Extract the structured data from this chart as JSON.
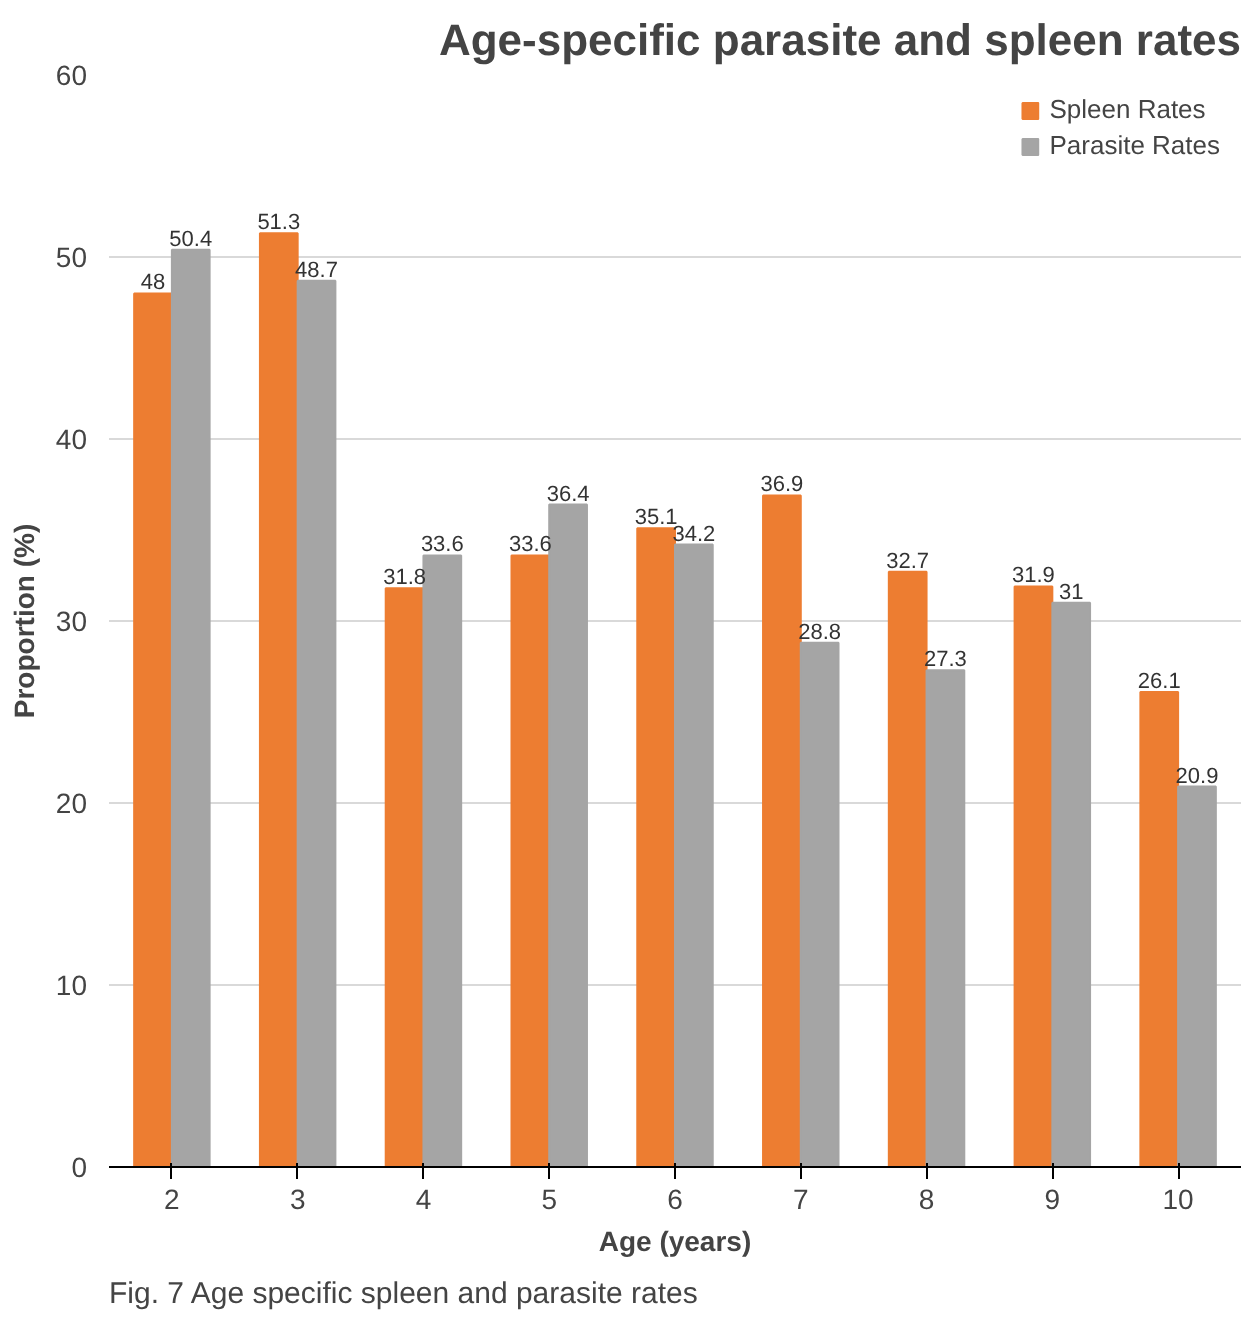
{
  "chart_data": {
    "type": "bar",
    "title": "Age-specific parasite and spleen rates",
    "xlabel": "Age (years)",
    "ylabel": "Proportion (%)",
    "categories": [
      "2",
      "3",
      "4",
      "5",
      "6",
      "7",
      "8",
      "9",
      "10"
    ],
    "series": [
      {
        "name": "Spleen Rates",
        "color": "#ed7d31",
        "values": [
          48,
          51.3,
          31.8,
          33.6,
          35.1,
          36.9,
          32.7,
          31.9,
          26.1
        ]
      },
      {
        "name": "Parasite Rates",
        "color": "#a5a5a5",
        "values": [
          50.4,
          48.7,
          33.6,
          36.4,
          34.2,
          28.8,
          27.3,
          31,
          20.9
        ]
      }
    ],
    "ylim": [
      0,
      60
    ],
    "yticks": [
      0,
      10,
      20,
      30,
      40,
      50,
      60
    ],
    "grid": "y",
    "legend": "top right",
    "data_labels": true,
    "annotations": [
      "Fig. 7 Age specific spleen and parasite rates"
    ]
  }
}
